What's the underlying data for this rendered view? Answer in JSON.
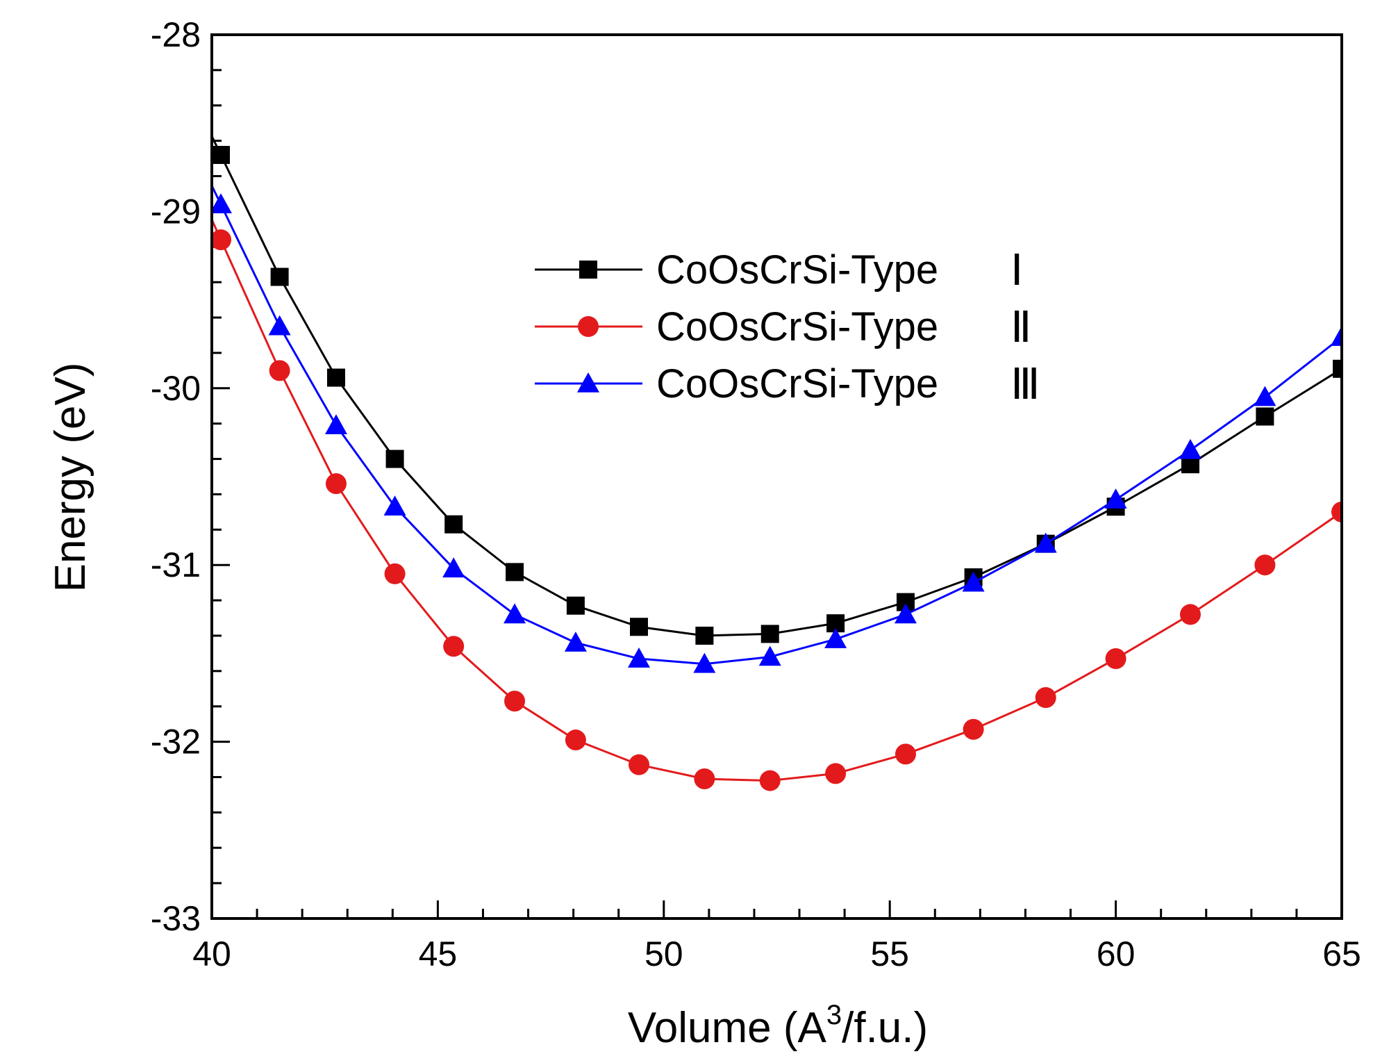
{
  "chart_data": {
    "type": "line",
    "title": "",
    "xlabel": "Volume (A",
    "xlabel_sup": "3",
    "xlabel_end": "/f.u.)",
    "ylabel": "Energy (eV)",
    "xlim": [
      40,
      65
    ],
    "ylim": [
      -33,
      -28
    ],
    "xticks": [
      40,
      45,
      50,
      55,
      60,
      65
    ],
    "yticks": [
      -33,
      -32,
      -31,
      -30,
      -29,
      -28
    ],
    "legend_position": "upper-center",
    "series": [
      {
        "name": "CoOsCrSi-Type",
        "roman": "Ⅰ",
        "marker": "square",
        "color": "#000000",
        "x": [
          40.2,
          41.5,
          42.75,
          44.05,
          45.35,
          46.7,
          48.05,
          49.45,
          50.9,
          52.35,
          53.8,
          55.35,
          56.85,
          58.45,
          60.0,
          61.65,
          63.3,
          65.0
        ],
        "y": [
          -28.68,
          -29.37,
          -29.94,
          -30.4,
          -30.77,
          -31.04,
          -31.23,
          -31.35,
          -31.4,
          -31.39,
          -31.33,
          -31.21,
          -31.07,
          -30.88,
          -30.67,
          -30.43,
          -30.16,
          -29.89
        ]
      },
      {
        "name": "CoOsCrSi-Type",
        "roman": "Ⅱ",
        "marker": "circle",
        "color": "#e31a1c",
        "x": [
          40.2,
          41.5,
          42.75,
          44.05,
          45.35,
          46.7,
          48.05,
          49.45,
          50.9,
          52.35,
          53.8,
          55.35,
          56.85,
          58.45,
          60.0,
          61.65,
          63.3,
          65.0
        ],
        "y": [
          -29.16,
          -29.9,
          -30.54,
          -31.05,
          -31.46,
          -31.77,
          -31.99,
          -32.13,
          -32.21,
          -32.22,
          -32.18,
          -32.07,
          -31.93,
          -31.75,
          -31.53,
          -31.28,
          -31.0,
          -30.7
        ]
      },
      {
        "name": "CoOsCrSi-Type",
        "roman": "Ⅲ",
        "marker": "triangle",
        "color": "#0000ff",
        "x": [
          40.2,
          41.5,
          42.75,
          44.05,
          45.35,
          46.7,
          48.05,
          49.45,
          50.9,
          52.35,
          53.8,
          55.35,
          56.85,
          58.45,
          60.0,
          61.65,
          63.3,
          65.0
        ],
        "y": [
          -28.96,
          -29.65,
          -30.21,
          -30.67,
          -31.02,
          -31.28,
          -31.44,
          -31.53,
          -31.56,
          -31.52,
          -31.42,
          -31.28,
          -31.1,
          -30.88,
          -30.63,
          -30.35,
          -30.05,
          -29.71
        ]
      }
    ]
  }
}
